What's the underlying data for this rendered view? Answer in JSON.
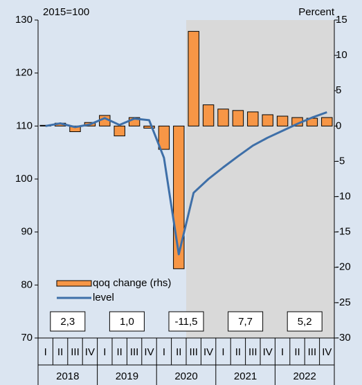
{
  "chart_data": {
    "type": "bar-line",
    "left_axis_label": "2015=100",
    "right_axis_label": "Percent",
    "quarters": [
      "I",
      "II",
      "III",
      "IV",
      "I",
      "II",
      "III",
      "IV",
      "I",
      "II",
      "III",
      "IV",
      "I",
      "II",
      "III",
      "IV",
      "I",
      "II",
      "III",
      "IV"
    ],
    "years": [
      "2018",
      "2019",
      "2020",
      "2021",
      "2022"
    ],
    "annual_labels": [
      "2,3",
      "1,0",
      "-11,5",
      "7,7",
      "5,2"
    ],
    "forecast_start": 10,
    "ylim": [
      70,
      130
    ],
    "yticks": [
      70,
      80,
      90,
      100,
      110,
      120,
      130
    ],
    "y2lim": [
      -30,
      15
    ],
    "y2ticks": [
      -30,
      -25,
      -20,
      -15,
      -10,
      -5,
      0,
      5,
      10,
      15
    ],
    "series": [
      {
        "name": "qoq change (rhs)",
        "color": "#f79646",
        "axis": "y2",
        "kind": "bar",
        "values": [
          0.1,
          0.4,
          -0.8,
          0.5,
          1.5,
          -1.4,
          1.2,
          -0.3,
          -3.3,
          -20.2,
          13.4,
          3.0,
          2.4,
          2.2,
          2.0,
          1.6,
          1.4,
          1.2,
          1.1,
          1.2
        ]
      },
      {
        "name": "level",
        "color": "#3e6fa8",
        "axis": "y",
        "kind": "line",
        "values": [
          110.0,
          110.5,
          109.8,
          110.3,
          111.5,
          110.2,
          111.4,
          111.1,
          104.0,
          85.8,
          97.4,
          100.0,
          102.2,
          104.3,
          106.3,
          107.8,
          109.1,
          110.4,
          111.6,
          112.6
        ]
      }
    ]
  }
}
